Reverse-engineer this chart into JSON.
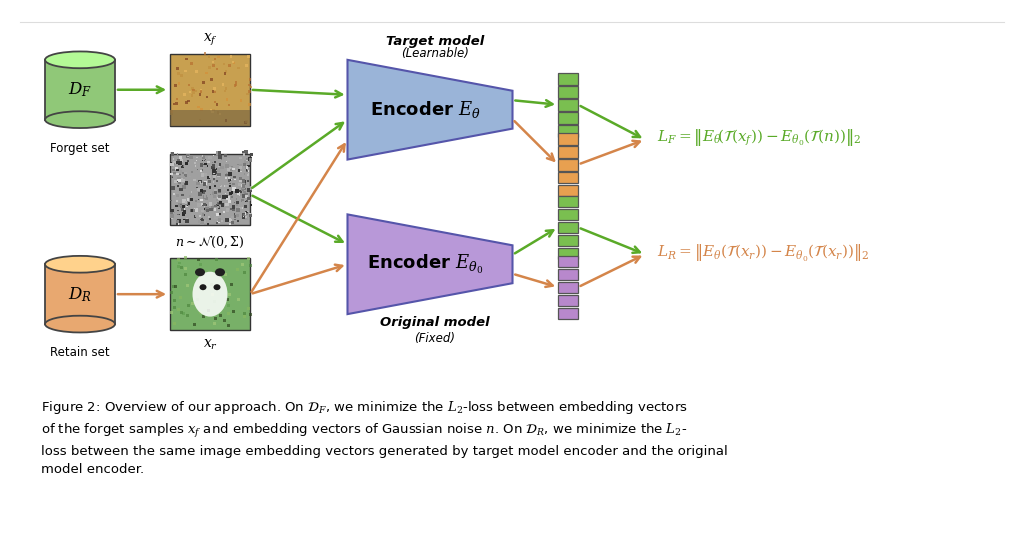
{
  "bg_color": "#ffffff",
  "green_cyl_color": "#90c878",
  "orange_cyl_color": "#e8a870",
  "blue_enc_color": "#9ab4d8",
  "purple_enc_color": "#b898d8",
  "dark_green": "#5aaa28",
  "dark_orange": "#d4854a",
  "stack_green": "#7abf50",
  "stack_orange": "#e8a050",
  "stack_purple": "#b888cc",
  "noise_gray": "#909090",
  "fox_brown": "#b88040",
  "panda_green": "#88c878",
  "encoder1_label": "Encoder $E_\\theta$",
  "encoder2_label": "Encoder $E_{\\theta_0}$",
  "target_model_label": "\\textit{\\textbf{Target model}}\\n\\textit{\\textbf{(Learnable)}}",
  "original_model_label": "\\textit{\\textbf{Original model}}\\n\\textit{\\textbf{(Fixed)}}",
  "DF_label": "$D_F$",
  "DR_label": "$D_R$",
  "forget_set_label": "Forget set",
  "retain_set_label": "Retain set",
  "xf_label": "$x_f$",
  "xr_label": "$x_r$",
  "noise_label": "$n \\sim \\mathcal{N}(0, \\Sigma)$"
}
